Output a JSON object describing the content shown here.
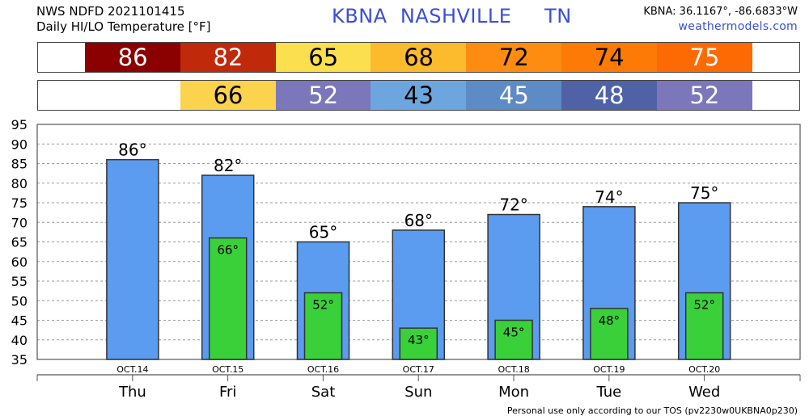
{
  "header": {
    "line1": "NWS NDFD 2021101415",
    "line2": "Daily HI/LO Temperature [°F]",
    "title": "KBNA  NASHVILLE     TN",
    "coords": "KBNA: 36.1167°, -86.6833°W",
    "site": "weathermodels.com"
  },
  "footer": "Personal use only according to our TOS (pv2230w0UKBNA0p230)",
  "colors": {
    "hi_bar": "#5b9bf0",
    "lo_bar": "#3ad03a",
    "hi_strip": [
      "#8b0000",
      "#c0290a",
      "#fcdf4e",
      "#fbbb2c",
      "#fd8c10",
      "#fd7a06",
      "#fd6a04"
    ],
    "lo_strip": [
      "#fcd34c",
      "#7b77ba",
      "#6da6de",
      "#5d8bc6",
      "#4f62a6",
      "#7b77ba"
    ]
  },
  "chart_data": {
    "type": "bar",
    "categories": [
      "Thu",
      "Fri",
      "Sat",
      "Sun",
      "Mon",
      "Tue",
      "Wed"
    ],
    "dates": [
      "OCT.14",
      "OCT.15",
      "OCT.16",
      "OCT.17",
      "OCT.18",
      "OCT.19",
      "OCT.20"
    ],
    "series": [
      {
        "values": [
          86,
          82,
          65,
          68,
          72,
          74,
          75
        ]
      },
      {
        "values": [
          null,
          66,
          52,
          43,
          45,
          48,
          52
        ]
      }
    ],
    "ylim": [
      35,
      95
    ],
    "yticks": [
      35,
      40,
      45,
      50,
      55,
      60,
      65,
      70,
      75,
      80,
      85,
      90,
      95
    ],
    "grid": true,
    "unit_suffix": "°"
  }
}
